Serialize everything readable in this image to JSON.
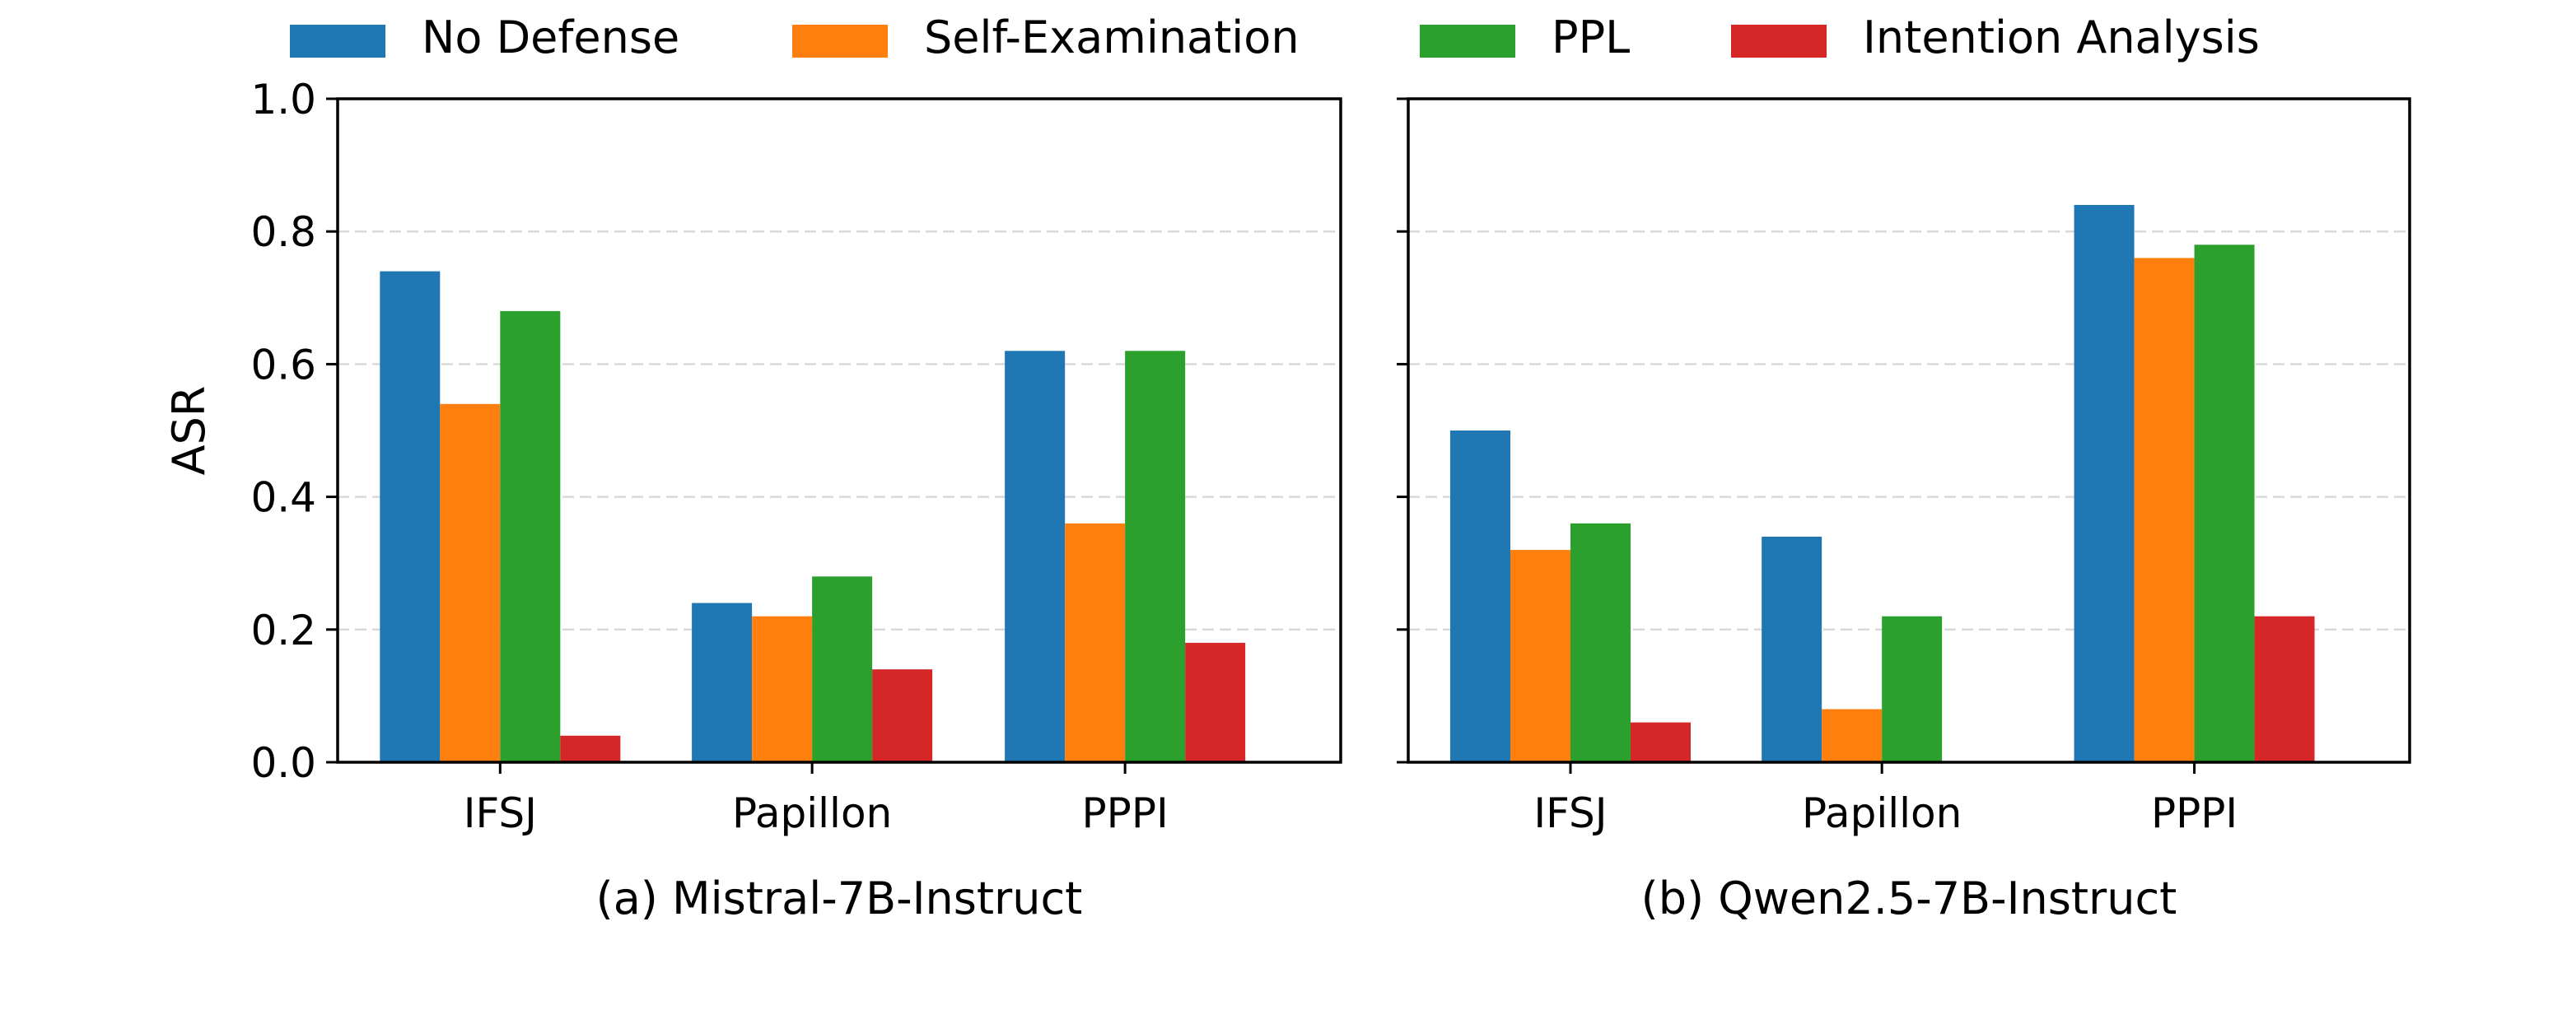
{
  "chart_data": [
    {
      "type": "bar",
      "title": "(a) Mistral-7B-Instruct",
      "xlabel": "",
      "ylabel": "ASR",
      "ylim": [
        0,
        1.0
      ],
      "yticks": [
        "0.0",
        "0.2",
        "0.4",
        "0.6",
        "0.8",
        "1.0"
      ],
      "grid": "horizontal dashed",
      "categories": [
        "IFSJ",
        "Papillon",
        "PPPI"
      ],
      "series": [
        {
          "name": "No Defense",
          "color": "#1f77b4",
          "values": [
            0.74,
            0.24,
            0.62
          ]
        },
        {
          "name": "Self-Examination",
          "color": "#ff7f0e",
          "values": [
            0.54,
            0.22,
            0.36
          ]
        },
        {
          "name": "PPL",
          "color": "#2ca02c",
          "values": [
            0.68,
            0.28,
            0.62
          ]
        },
        {
          "name": "Intention Analysis",
          "color": "#d62728",
          "values": [
            0.04,
            0.14,
            0.18
          ]
        }
      ]
    },
    {
      "type": "bar",
      "title": "(b) Qwen2.5-7B-Instruct",
      "xlabel": "",
      "ylabel": "",
      "ylim": [
        0,
        1.0
      ],
      "yticks": [
        "0.0",
        "0.2",
        "0.4",
        "0.6",
        "0.8",
        "1.0"
      ],
      "grid": "horizontal dashed",
      "categories": [
        "IFSJ",
        "Papillon",
        "PPPI"
      ],
      "series": [
        {
          "name": "No Defense",
          "color": "#1f77b4",
          "values": [
            0.5,
            0.34,
            0.84
          ]
        },
        {
          "name": "Self-Examination",
          "color": "#ff7f0e",
          "values": [
            0.32,
            0.08,
            0.76
          ]
        },
        {
          "name": "PPL",
          "color": "#2ca02c",
          "values": [
            0.36,
            0.22,
            0.78
          ]
        },
        {
          "name": "Intention Analysis",
          "color": "#d62728",
          "values": [
            0.06,
            0.0,
            0.22
          ]
        }
      ]
    }
  ],
  "legend": {
    "placement": "top-center",
    "entries": [
      {
        "label": "No Defense",
        "color": "#1f77b4"
      },
      {
        "label": "Self-Examination",
        "color": "#ff7f0e"
      },
      {
        "label": "PPL",
        "color": "#2ca02c"
      },
      {
        "label": "Intention Analysis",
        "color": "#d62728"
      }
    ]
  }
}
